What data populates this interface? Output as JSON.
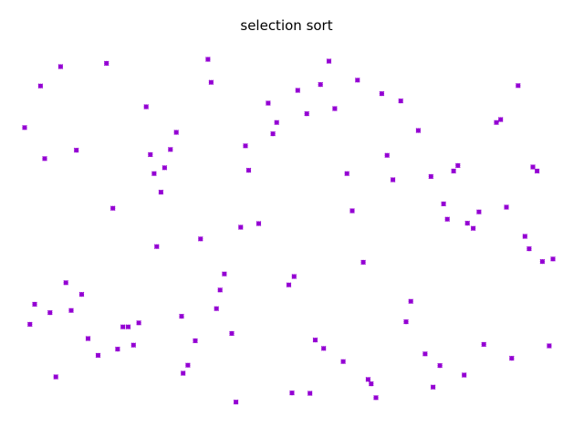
{
  "chart_data": {
    "type": "scatter",
    "title": "selection sort",
    "xlabel": "",
    "ylabel": "",
    "axes_visible": false,
    "grid": false,
    "legend": "none",
    "xlim": [
      0,
      1
    ],
    "ylim": [
      0,
      1
    ],
    "marker": "x-circle",
    "series": [
      {
        "color": "#9400D3",
        "points": [
          [
            0.0,
            0.793
          ],
          [
            0.01,
            0.254
          ],
          [
            0.019,
            0.309
          ],
          [
            0.03,
            0.907
          ],
          [
            0.038,
            0.708
          ],
          [
            0.048,
            0.286
          ],
          [
            0.059,
            0.11
          ],
          [
            0.068,
            0.96
          ],
          [
            0.078,
            0.368
          ],
          [
            0.088,
            0.292
          ],
          [
            0.098,
            0.731
          ],
          [
            0.108,
            0.336
          ],
          [
            0.12,
            0.215
          ],
          [
            0.139,
            0.169
          ],
          [
            0.155,
            0.969
          ],
          [
            0.167,
            0.572
          ],
          [
            0.176,
            0.186
          ],
          [
            0.186,
            0.247
          ],
          [
            0.196,
            0.247
          ],
          [
            0.206,
            0.197
          ],
          [
            0.216,
            0.258
          ],
          [
            0.23,
            0.85
          ],
          [
            0.238,
            0.719
          ],
          [
            0.245,
            0.667
          ],
          [
            0.25,
            0.467
          ],
          [
            0.258,
            0.616
          ],
          [
            0.265,
            0.683
          ],
          [
            0.276,
            0.733
          ],
          [
            0.287,
            0.78
          ],
          [
            0.297,
            0.276
          ],
          [
            0.3,
            0.12
          ],
          [
            0.309,
            0.142
          ],
          [
            0.323,
            0.209
          ],
          [
            0.333,
            0.488
          ],
          [
            0.347,
            0.98
          ],
          [
            0.353,
            0.917
          ],
          [
            0.363,
            0.297
          ],
          [
            0.37,
            0.348
          ],
          [
            0.378,
            0.392
          ],
          [
            0.392,
            0.229
          ],
          [
            0.4,
            0.041
          ],
          [
            0.409,
            0.52
          ],
          [
            0.418,
            0.743
          ],
          [
            0.424,
            0.676
          ],
          [
            0.443,
            0.53
          ],
          [
            0.461,
            0.86
          ],
          [
            0.47,
            0.776
          ],
          [
            0.477,
            0.807
          ],
          [
            0.5,
            0.362
          ],
          [
            0.506,
            0.066
          ],
          [
            0.51,
            0.385
          ],
          [
            0.517,
            0.895
          ],
          [
            0.534,
            0.831
          ],
          [
            0.54,
            0.065
          ],
          [
            0.55,
            0.211
          ],
          [
            0.56,
            0.911
          ],
          [
            0.566,
            0.188
          ],
          [
            0.576,
            0.975
          ],
          [
            0.587,
            0.845
          ],
          [
            0.603,
            0.152
          ],
          [
            0.61,
            0.667
          ],
          [
            0.62,
            0.565
          ],
          [
            0.63,
            0.923
          ],
          [
            0.641,
            0.424
          ],
          [
            0.65,
            0.103
          ],
          [
            0.656,
            0.091
          ],
          [
            0.665,
            0.053
          ],
          [
            0.676,
            0.886
          ],
          [
            0.686,
            0.717
          ],
          [
            0.697,
            0.65
          ],
          [
            0.712,
            0.866
          ],
          [
            0.722,
            0.261
          ],
          [
            0.731,
            0.317
          ],
          [
            0.745,
            0.785
          ],
          [
            0.758,
            0.173
          ],
          [
            0.769,
            0.659
          ],
          [
            0.773,
            0.082
          ],
          [
            0.786,
            0.141
          ],
          [
            0.793,
            0.584
          ],
          [
            0.8,
            0.542
          ],
          [
            0.812,
            0.674
          ],
          [
            0.82,
            0.689
          ],
          [
            0.832,
            0.115
          ],
          [
            0.838,
            0.531
          ],
          [
            0.849,
            0.517
          ],
          [
            0.86,
            0.562
          ],
          [
            0.869,
            0.199
          ],
          [
            0.893,
            0.807
          ],
          [
            0.901,
            0.815
          ],
          [
            0.912,
            0.575
          ],
          [
            0.922,
            0.161
          ],
          [
            0.934,
            0.908
          ],
          [
            0.947,
            0.495
          ],
          [
            0.955,
            0.461
          ],
          [
            0.962,
            0.685
          ],
          [
            0.97,
            0.674
          ],
          [
            0.98,
            0.426
          ],
          [
            0.993,
            0.195
          ],
          [
            1.0,
            0.433
          ]
        ]
      }
    ]
  }
}
